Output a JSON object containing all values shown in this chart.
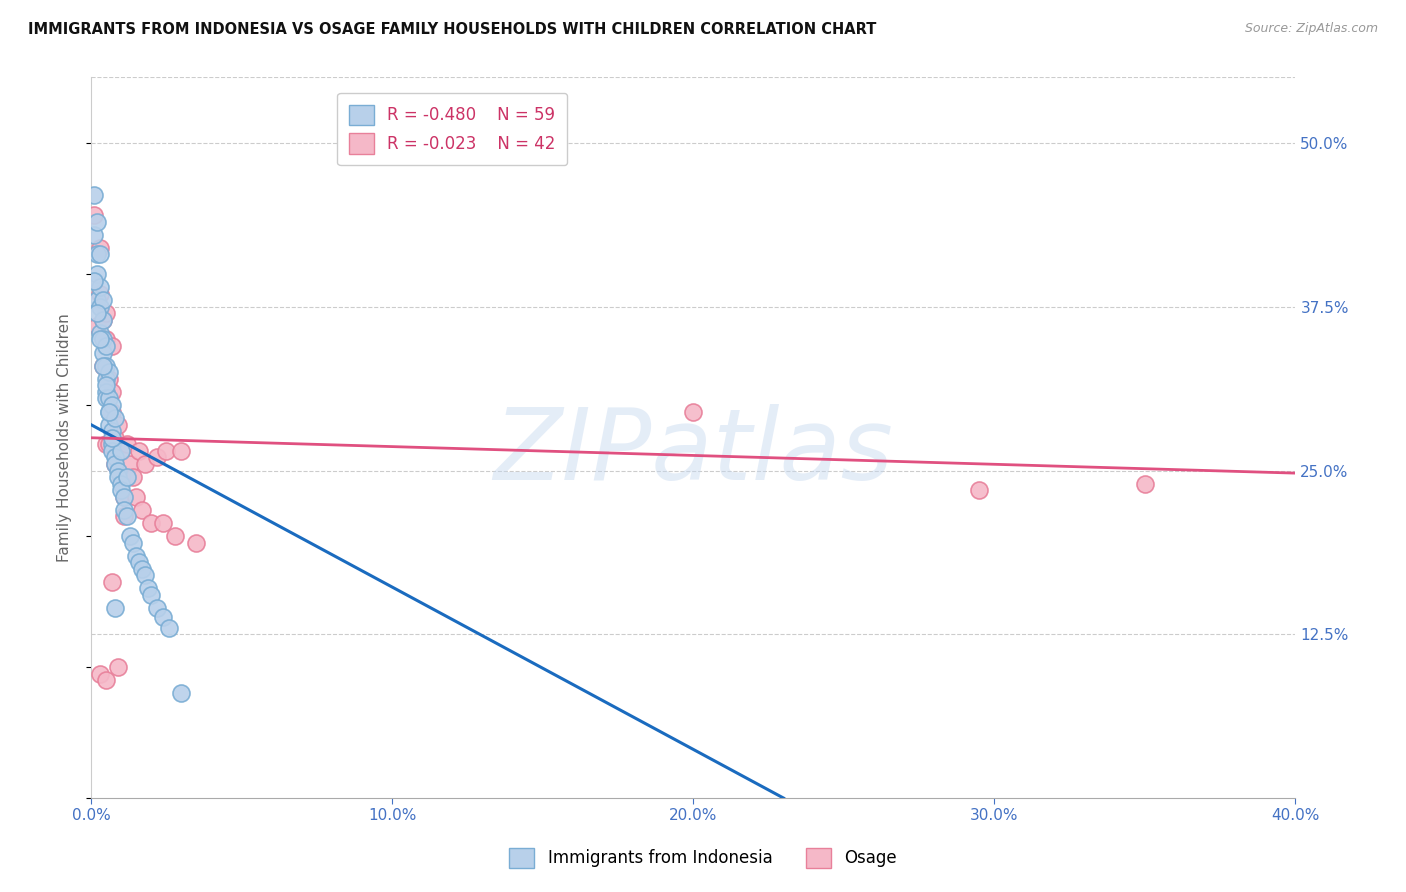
{
  "title": "IMMIGRANTS FROM INDONESIA VS OSAGE FAMILY HOUSEHOLDS WITH CHILDREN CORRELATION CHART",
  "source": "Source: ZipAtlas.com",
  "ylabel": "Family Households with Children",
  "xlim": [
    0.0,
    0.4
  ],
  "ylim": [
    0.0,
    0.55
  ],
  "yticks": [
    0.0,
    0.125,
    0.25,
    0.375,
    0.5
  ],
  "ytick_labels": [
    "",
    "12.5%",
    "25.0%",
    "37.5%",
    "50.0%"
  ],
  "xticks": [
    0.0,
    0.1,
    0.2,
    0.3,
    0.4
  ],
  "xtick_labels": [
    "0.0%",
    "10.0%",
    "20.0%",
    "30.0%",
    "40.0%"
  ],
  "series1_name": "Immigrants from Indonesia",
  "series1_R": -0.48,
  "series1_N": 59,
  "series1_color": "#b8d0ea",
  "series1_edge": "#7aadd4",
  "series2_name": "Osage",
  "series2_R": -0.023,
  "series2_N": 42,
  "series2_color": "#f5b8c8",
  "series2_edge": "#e8809a",
  "trend1_color": "#1a6bbf",
  "trend2_color": "#e05080",
  "background_color": "#ffffff",
  "grid_color": "#cccccc",
  "axis_label_color": "#4472c4",
  "watermark": "ZIPatlas",
  "series1_x": [
    0.001,
    0.001,
    0.002,
    0.002,
    0.002,
    0.002,
    0.003,
    0.003,
    0.003,
    0.003,
    0.004,
    0.004,
    0.004,
    0.004,
    0.005,
    0.005,
    0.005,
    0.005,
    0.005,
    0.006,
    0.006,
    0.006,
    0.006,
    0.007,
    0.007,
    0.007,
    0.007,
    0.008,
    0.008,
    0.008,
    0.009,
    0.009,
    0.01,
    0.01,
    0.01,
    0.011,
    0.011,
    0.012,
    0.012,
    0.013,
    0.014,
    0.015,
    0.016,
    0.017,
    0.018,
    0.019,
    0.02,
    0.022,
    0.024,
    0.026,
    0.001,
    0.002,
    0.003,
    0.004,
    0.005,
    0.006,
    0.007,
    0.008,
    0.03
  ],
  "series1_y": [
    0.43,
    0.46,
    0.415,
    0.4,
    0.44,
    0.38,
    0.39,
    0.375,
    0.415,
    0.355,
    0.365,
    0.35,
    0.34,
    0.38,
    0.33,
    0.32,
    0.31,
    0.345,
    0.305,
    0.305,
    0.295,
    0.285,
    0.325,
    0.28,
    0.27,
    0.265,
    0.3,
    0.26,
    0.255,
    0.29,
    0.25,
    0.245,
    0.24,
    0.235,
    0.265,
    0.23,
    0.22,
    0.215,
    0.245,
    0.2,
    0.195,
    0.185,
    0.18,
    0.175,
    0.17,
    0.16,
    0.155,
    0.145,
    0.138,
    0.13,
    0.395,
    0.37,
    0.35,
    0.33,
    0.315,
    0.295,
    0.275,
    0.145,
    0.08
  ],
  "series2_x": [
    0.001,
    0.002,
    0.003,
    0.003,
    0.004,
    0.004,
    0.005,
    0.005,
    0.005,
    0.006,
    0.006,
    0.007,
    0.007,
    0.007,
    0.008,
    0.008,
    0.009,
    0.01,
    0.01,
    0.011,
    0.011,
    0.012,
    0.013,
    0.014,
    0.015,
    0.016,
    0.017,
    0.018,
    0.02,
    0.022,
    0.024,
    0.025,
    0.028,
    0.03,
    0.035,
    0.2,
    0.003,
    0.005,
    0.007,
    0.009,
    0.295,
    0.35
  ],
  "series2_y": [
    0.445,
    0.36,
    0.42,
    0.385,
    0.365,
    0.33,
    0.37,
    0.35,
    0.27,
    0.32,
    0.27,
    0.31,
    0.295,
    0.345,
    0.275,
    0.255,
    0.285,
    0.265,
    0.245,
    0.23,
    0.215,
    0.27,
    0.255,
    0.245,
    0.23,
    0.265,
    0.22,
    0.255,
    0.21,
    0.26,
    0.21,
    0.265,
    0.2,
    0.265,
    0.195,
    0.295,
    0.095,
    0.09,
    0.165,
    0.1,
    0.235,
    0.24
  ],
  "trend1_x_start": 0.0,
  "trend1_y_start": 0.285,
  "trend1_x_end": 0.23,
  "trend1_y_end": 0.0,
  "trend2_x_start": 0.0,
  "trend2_y_start": 0.275,
  "trend2_x_end": 0.4,
  "trend2_y_end": 0.248
}
